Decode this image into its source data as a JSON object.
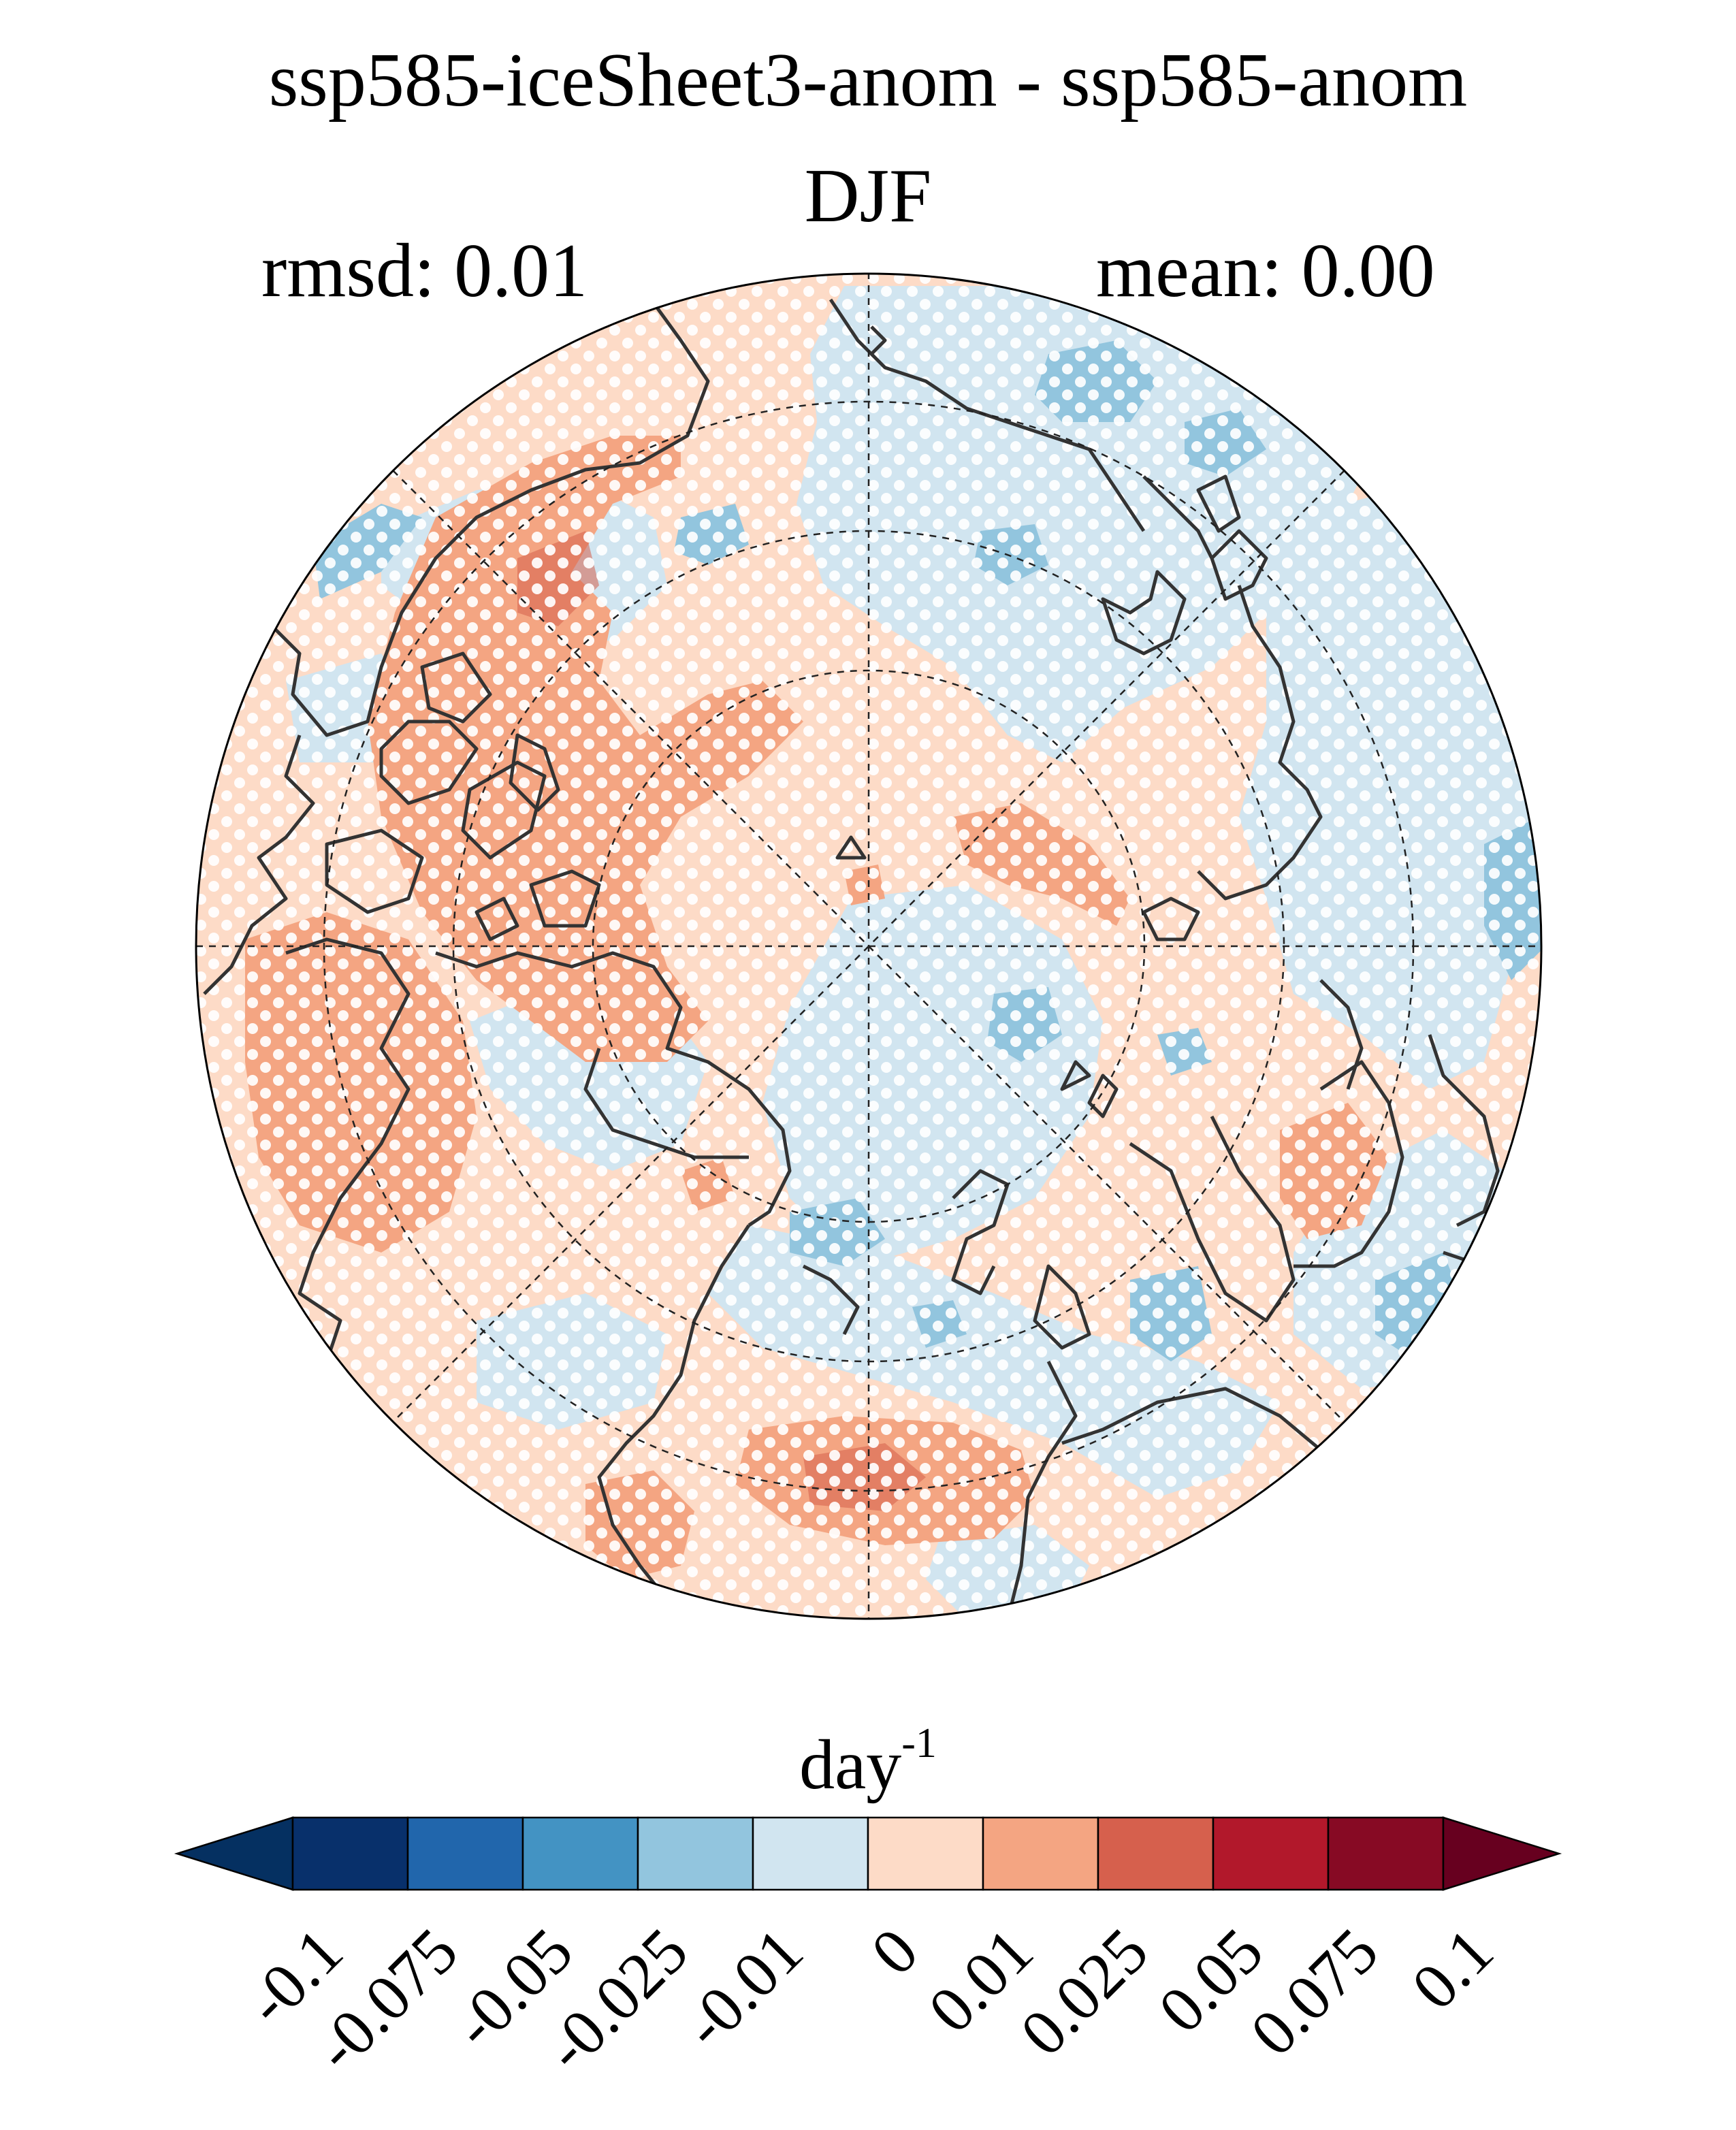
{
  "header": {
    "title": "ssp585-iceSheet3-anom - ssp585-anom",
    "season": "DJF",
    "rmsd_label": "rmsd: 0.01",
    "mean_label": "mean: 0.00"
  },
  "map": {
    "projection": "north-polar-stereographic",
    "graticule": "dashed",
    "coastlines": true,
    "stippling": "white-dots",
    "fill_colors": {
      "neg_medium": "#4393c3",
      "neg_light": "#92c5de",
      "neg_faint": "#d1e5f0",
      "pos_faint": "#fddbc7",
      "pos_light": "#f4a582",
      "pos_medium": "#d6604d"
    }
  },
  "colorbar": {
    "units_base": "day",
    "units_exp": "-1",
    "ticks": [
      "-0.1",
      "-0.075",
      "-0.05",
      "-0.025",
      "-0.01",
      "0",
      "0.01",
      "0.025",
      "0.05",
      "0.075",
      "0.1"
    ],
    "colors": [
      "#053061",
      "#08306b",
      "#2166ac",
      "#4393c3",
      "#92c5de",
      "#d1e5f0",
      "#fddbc7",
      "#f4a582",
      "#d6604d",
      "#b2182b",
      "#870a24",
      "#67001f"
    ]
  }
}
